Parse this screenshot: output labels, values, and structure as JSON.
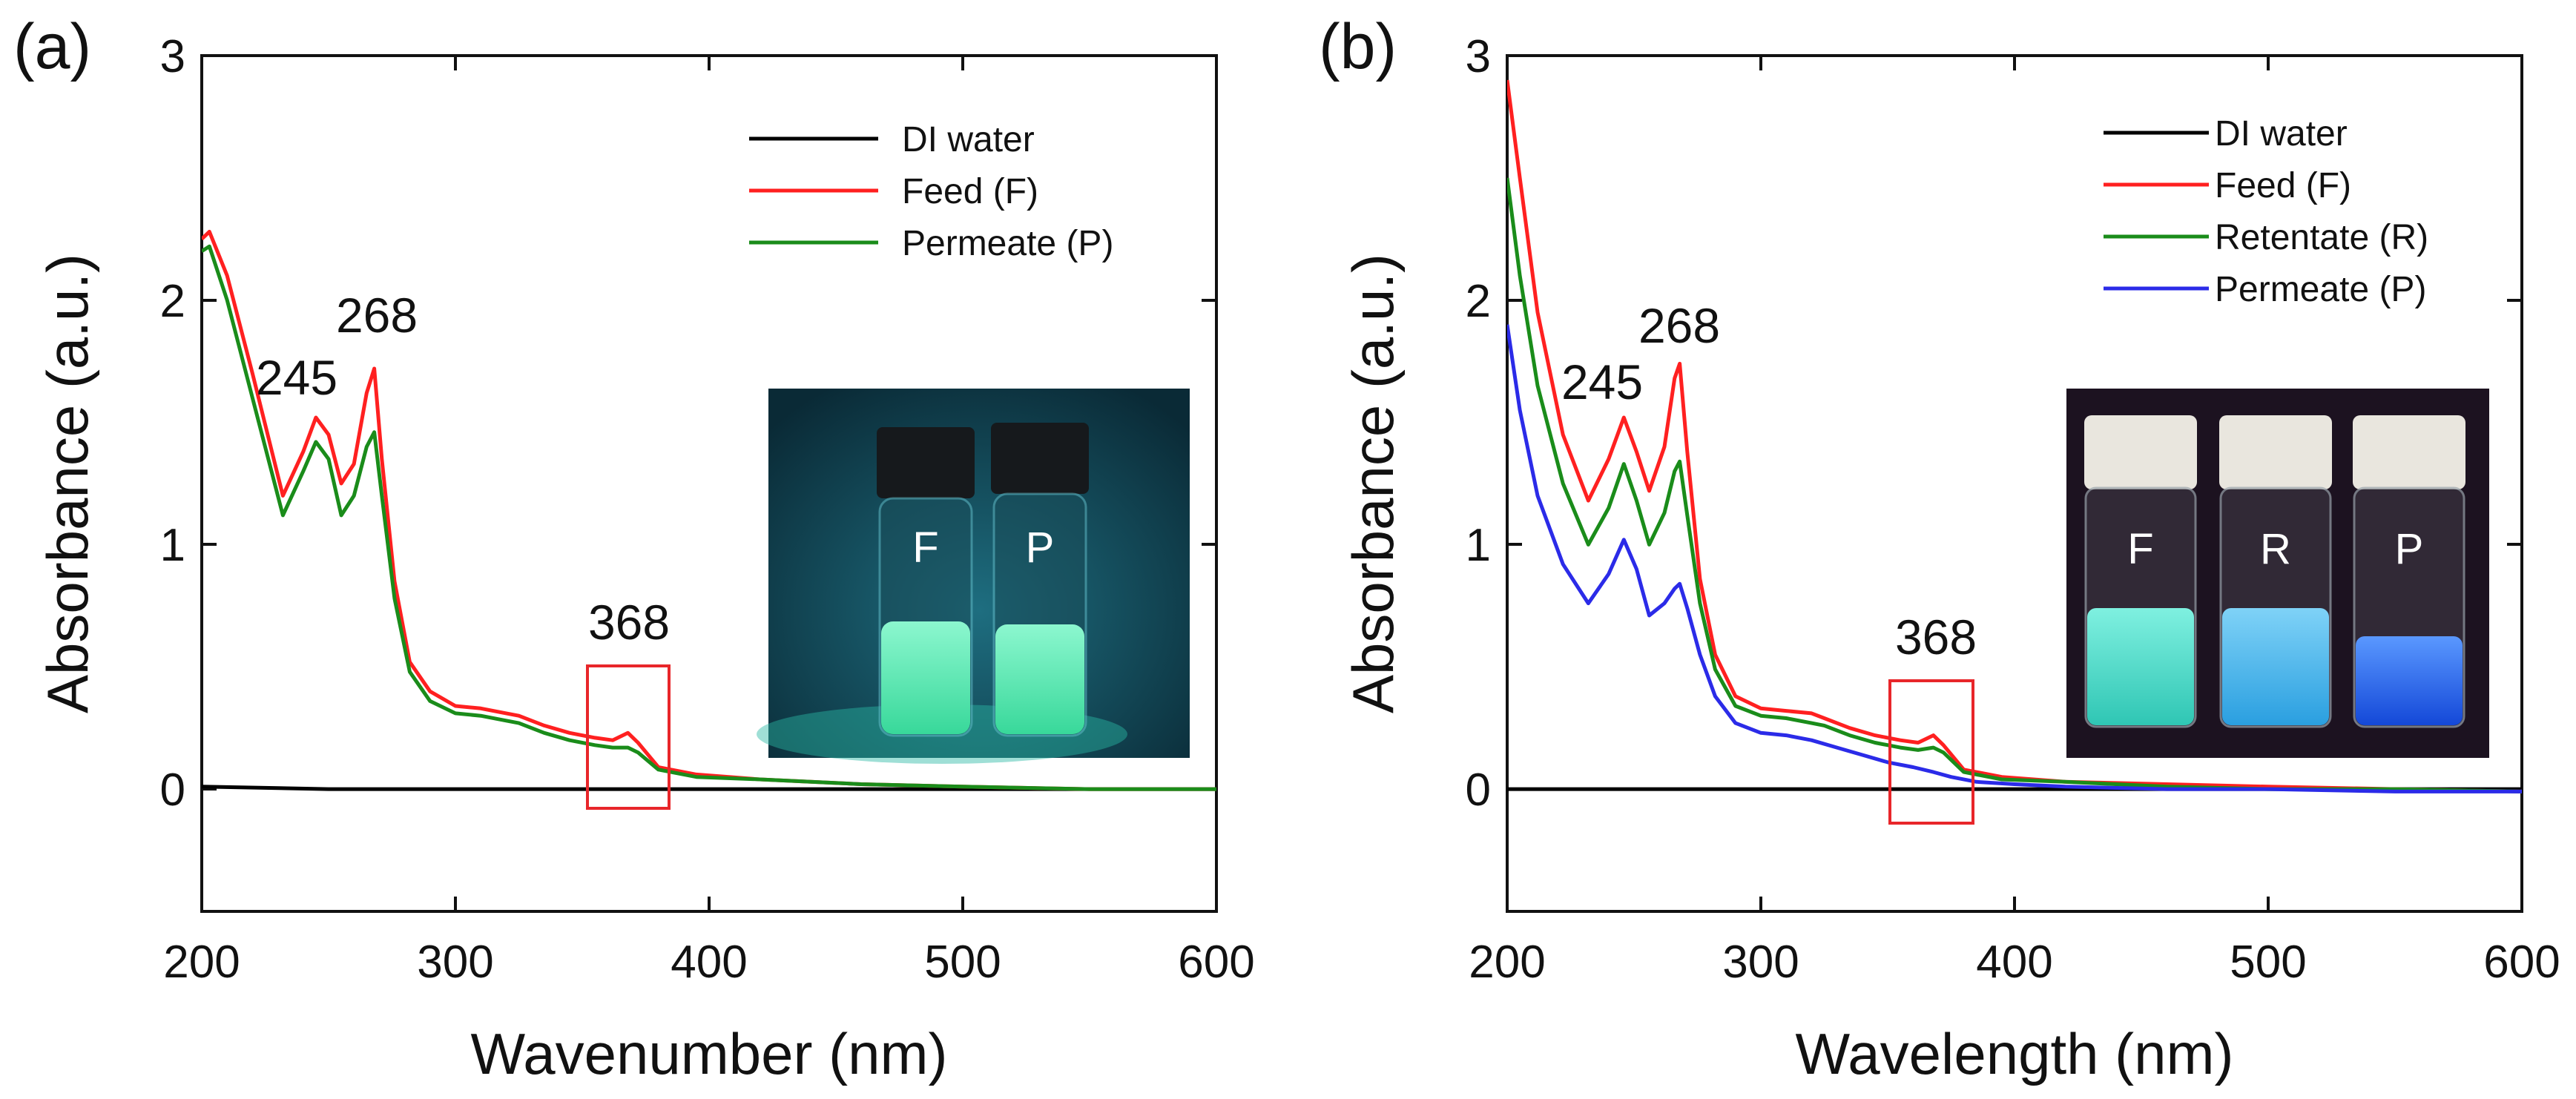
{
  "chart_data": [
    {
      "panel_label": "(a)",
      "type": "line",
      "xlabel": "Wavenumber (nm)",
      "ylabel": "Absorbance (a.u.)",
      "xlim": [
        200,
        600
      ],
      "ylim": [
        -0.5,
        3
      ],
      "xticks": [
        200,
        300,
        400,
        500,
        600
      ],
      "yticks": [
        0,
        1,
        2,
        3
      ],
      "legend_position": "top-right",
      "series": [
        {
          "name": "DI water",
          "color": "#000000",
          "x": [
            200,
            250,
            300,
            350,
            400,
            450,
            500,
            550,
            600
          ],
          "y": [
            0.01,
            0.0,
            0.0,
            0.0,
            0.0,
            0.0,
            0.0,
            0.0,
            0.0
          ]
        },
        {
          "name": "Feed (F)",
          "color": "#ff2020",
          "x": [
            200,
            203,
            210,
            220,
            232,
            240,
            245,
            250,
            255,
            260,
            265,
            268,
            271,
            276,
            282,
            290,
            300,
            310,
            320,
            325,
            335,
            345,
            355,
            362,
            368,
            372,
            380,
            395,
            420,
            460,
            500,
            550,
            600
          ],
          "y": [
            2.25,
            2.28,
            2.1,
            1.7,
            1.2,
            1.38,
            1.52,
            1.45,
            1.25,
            1.33,
            1.62,
            1.72,
            1.35,
            0.85,
            0.52,
            0.4,
            0.34,
            0.33,
            0.31,
            0.3,
            0.26,
            0.23,
            0.21,
            0.2,
            0.23,
            0.19,
            0.09,
            0.06,
            0.04,
            0.02,
            0.01,
            0.0,
            0.0
          ]
        },
        {
          "name": "Permeate (P)",
          "color": "#1a8c1a",
          "x": [
            200,
            203,
            210,
            220,
            232,
            240,
            245,
            250,
            255,
            260,
            265,
            268,
            271,
            276,
            282,
            290,
            300,
            310,
            320,
            325,
            335,
            345,
            355,
            362,
            368,
            372,
            380,
            395,
            420,
            460,
            500,
            550,
            600
          ],
          "y": [
            2.2,
            2.22,
            2.0,
            1.6,
            1.12,
            1.3,
            1.42,
            1.35,
            1.12,
            1.2,
            1.4,
            1.46,
            1.2,
            0.78,
            0.48,
            0.36,
            0.31,
            0.3,
            0.28,
            0.27,
            0.23,
            0.2,
            0.18,
            0.17,
            0.17,
            0.15,
            0.08,
            0.05,
            0.04,
            0.02,
            0.01,
            0.0,
            0.0
          ]
        }
      ],
      "annotations": [
        "245",
        "268",
        "368"
      ],
      "inset": {
        "vials": [
          "F",
          "P"
        ],
        "background_color": "#0f3a48",
        "vial_glow_color": "#3ff0b4"
      }
    },
    {
      "panel_label": "(b)",
      "type": "line",
      "xlabel": "Wavelength (nm)",
      "ylabel": "Absorbance (a.u.)",
      "xlim": [
        200,
        600
      ],
      "ylim": [
        -0.5,
        3
      ],
      "xticks": [
        200,
        300,
        400,
        500,
        600
      ],
      "yticks": [
        0,
        1,
        2,
        3
      ],
      "legend_position": "top-right",
      "series": [
        {
          "name": "DI water",
          "color": "#000000",
          "x": [
            200,
            250,
            300,
            350,
            400,
            450,
            500,
            550,
            600
          ],
          "y": [
            0.0,
            0.0,
            0.0,
            0.0,
            0.0,
            0.0,
            0.0,
            0.0,
            0.0
          ]
        },
        {
          "name": "Feed (F)",
          "color": "#ff2020",
          "x": [
            200,
            205,
            212,
            222,
            232,
            240,
            246,
            251,
            256,
            262,
            266,
            268,
            271,
            276,
            282,
            290,
            300,
            310,
            320,
            325,
            335,
            345,
            355,
            362,
            368,
            372,
            380,
            395,
            420,
            460,
            500,
            550,
            600
          ],
          "y": [
            2.9,
            2.5,
            1.95,
            1.45,
            1.18,
            1.35,
            1.52,
            1.38,
            1.22,
            1.4,
            1.68,
            1.74,
            1.38,
            0.86,
            0.55,
            0.38,
            0.33,
            0.32,
            0.31,
            0.29,
            0.25,
            0.22,
            0.2,
            0.19,
            0.22,
            0.18,
            0.08,
            0.05,
            0.03,
            0.02,
            0.01,
            0.0,
            -0.01
          ]
        },
        {
          "name": "Retentate (R)",
          "color": "#1a8c1a",
          "x": [
            200,
            205,
            212,
            222,
            232,
            240,
            246,
            251,
            256,
            262,
            266,
            268,
            271,
            276,
            282,
            290,
            300,
            310,
            320,
            325,
            335,
            345,
            355,
            362,
            368,
            372,
            380,
            395,
            420,
            460,
            500,
            550,
            600
          ],
          "y": [
            2.5,
            2.1,
            1.65,
            1.25,
            1.0,
            1.15,
            1.33,
            1.18,
            1.0,
            1.13,
            1.3,
            1.34,
            1.12,
            0.76,
            0.49,
            0.34,
            0.3,
            0.29,
            0.27,
            0.26,
            0.22,
            0.19,
            0.17,
            0.16,
            0.17,
            0.15,
            0.07,
            0.04,
            0.03,
            0.01,
            0.0,
            0.0,
            -0.01
          ]
        },
        {
          "name": "Permeate (P)",
          "color": "#2b2be8",
          "x": [
            200,
            205,
            212,
            222,
            232,
            240,
            246,
            251,
            256,
            262,
            266,
            268,
            271,
            276,
            282,
            290,
            300,
            310,
            320,
            330,
            340,
            350,
            360,
            368,
            375,
            385,
            400,
            420,
            460,
            500,
            550,
            600
          ],
          "y": [
            1.9,
            1.55,
            1.2,
            0.92,
            0.76,
            0.88,
            1.02,
            0.9,
            0.71,
            0.76,
            0.82,
            0.84,
            0.74,
            0.55,
            0.38,
            0.27,
            0.23,
            0.22,
            0.2,
            0.17,
            0.14,
            0.11,
            0.09,
            0.07,
            0.05,
            0.03,
            0.02,
            0.01,
            0.0,
            0.0,
            -0.01,
            -0.01
          ]
        }
      ],
      "annotations": [
        "245",
        "268",
        "368"
      ],
      "inset": {
        "vials": [
          "F",
          "R",
          "P"
        ],
        "background_color": "#1c1220",
        "vial_glow_colors": [
          "#3fe8d2",
          "#3cb8f0",
          "#1e6af0"
        ]
      }
    }
  ]
}
